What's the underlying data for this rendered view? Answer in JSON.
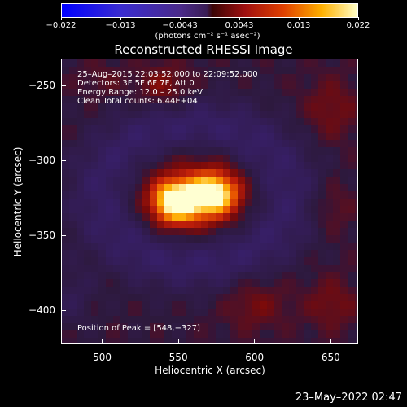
{
  "colorbar": {
    "ticks": [
      "−0.022",
      "−0.013",
      "−0.0043",
      "0.0043",
      "0.013",
      "0.022"
    ],
    "unit": "(photons cm⁻² s⁻¹ asec⁻²)"
  },
  "plot": {
    "title": "Reconstructed RHESSI Image",
    "info_lines": [
      "25–Aug–2015 22:03:52.000 to 22:09:52.000",
      "Detectors: 3F 5F 6F 7F, Att 0",
      "Energy Range: 12.0 – 25.0 keV",
      "Clean     Total counts: 6.44E+04"
    ],
    "peak_text": "Position of Peak = [548,−327]"
  },
  "chart_data": {
    "type": "heatmap",
    "title": "Reconstructed RHESSI Image",
    "xlabel": "Heliocentric X (arcsec)",
    "ylabel": "Heliocentric Y (arcsec)",
    "xlim": [
      473,
      668
    ],
    "ylim": [
      -422,
      -232
    ],
    "x_ticks": [
      "500",
      "550",
      "600",
      "650"
    ],
    "y_ticks": [
      "−250",
      "−300",
      "−350",
      "−400"
    ],
    "colorbar_range": [
      -0.022,
      0.022
    ],
    "peak": [
      548,
      -327
    ],
    "sources": [
      {
        "x": 548,
        "y": -327,
        "value": 0.022
      },
      {
        "x": 573,
        "y": -322,
        "value": 0.021
      }
    ]
  },
  "footer": {
    "timestamp": "23–May–2022 02:47"
  }
}
